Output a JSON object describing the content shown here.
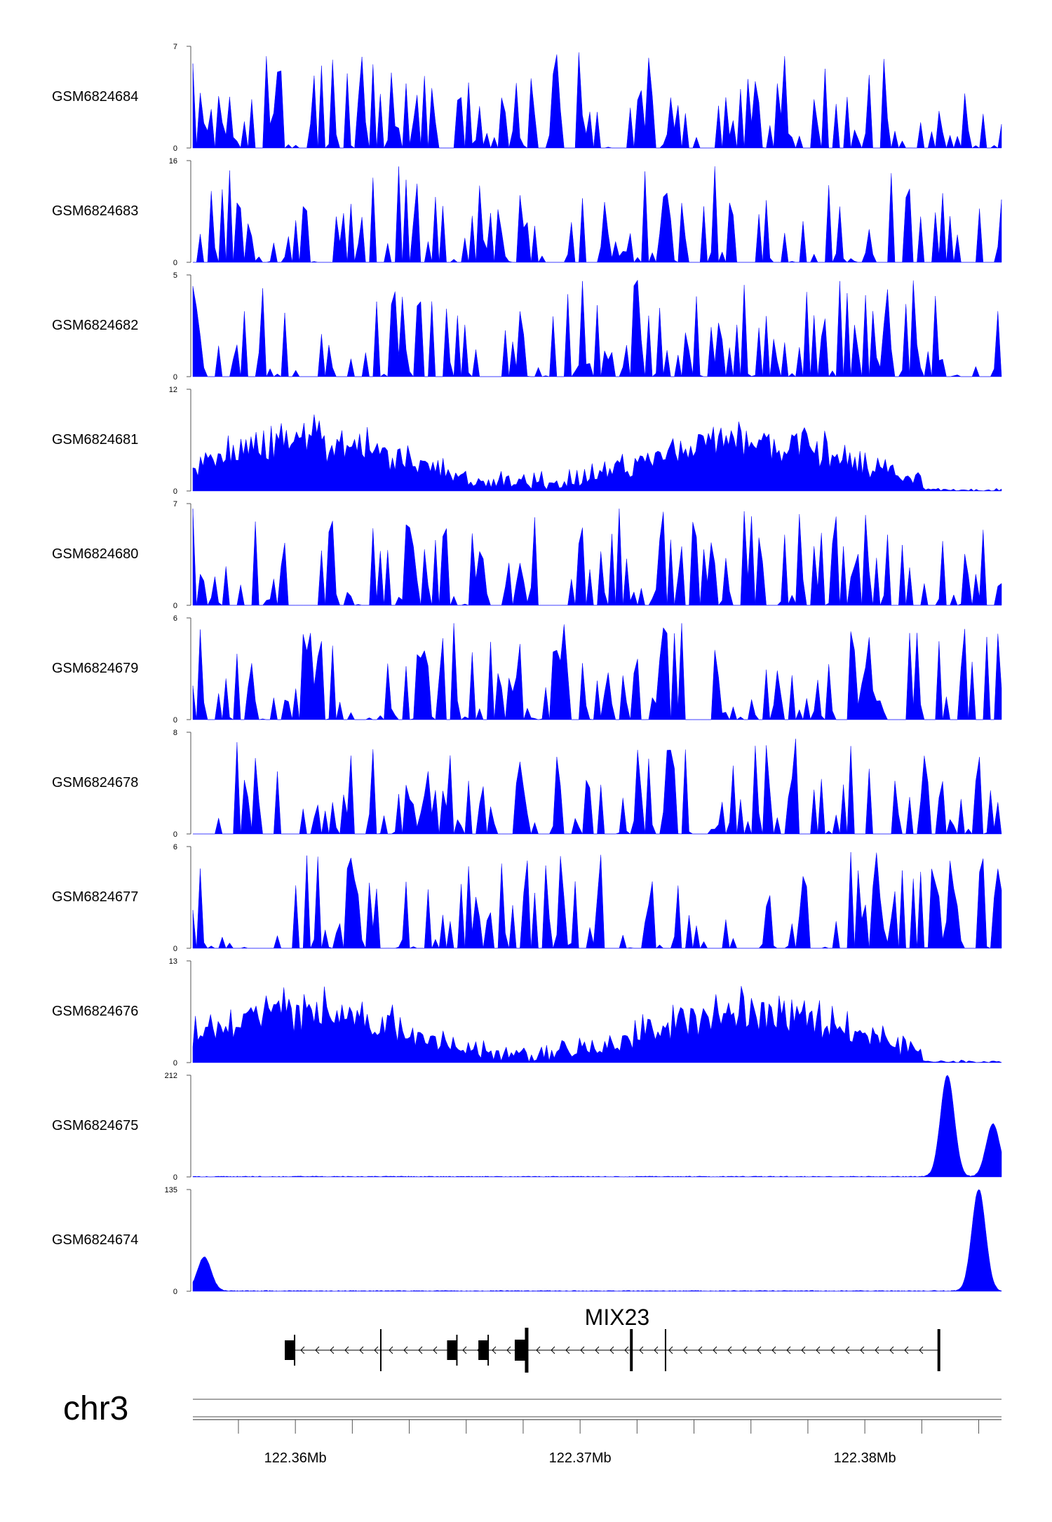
{
  "colors": {
    "track_fill": "#0000ff",
    "axis": "#555555",
    "gene": "#000000"
  },
  "chart_data": {
    "type": "area",
    "chromosome": "chr3",
    "x_range_mb": [
      122.3564,
      122.3848
    ],
    "x_ticks_mb": [
      122.358,
      122.36,
      122.362,
      122.364,
      122.366,
      122.368,
      122.37,
      122.372,
      122.374,
      122.376,
      122.378,
      122.38,
      122.382,
      122.384
    ],
    "x_tick_labels": [
      {
        "mb": 122.36,
        "label": "122.36Mb"
      },
      {
        "mb": 122.37,
        "label": "122.37Mb"
      },
      {
        "mb": 122.38,
        "label": "122.38Mb"
      }
    ],
    "tracks": [
      {
        "name": "GSM6824684",
        "ymax": 7,
        "ymin_label": "0"
      },
      {
        "name": "GSM6824683",
        "ymax": 16,
        "ymin_label": "0"
      },
      {
        "name": "GSM6824682",
        "ymax": 5,
        "ymin_label": "0"
      },
      {
        "name": "GSM6824681",
        "ymax": 12,
        "ymin_label": "0"
      },
      {
        "name": "GSM6824680",
        "ymax": 7,
        "ymin_label": "0"
      },
      {
        "name": "GSM6824679",
        "ymax": 6,
        "ymin_label": "0"
      },
      {
        "name": "GSM6824678",
        "ymax": 8,
        "ymin_label": "0"
      },
      {
        "name": "GSM6824677",
        "ymax": 6,
        "ymin_label": "0"
      },
      {
        "name": "GSM6824676",
        "ymax": 13,
        "ymin_label": "0"
      },
      {
        "name": "GSM6824675",
        "ymax": 212,
        "ymin_label": "0",
        "peaks": [
          {
            "mb": 122.3829,
            "value": 212
          },
          {
            "mb": 122.3845,
            "value": 110
          }
        ]
      },
      {
        "name": "GSM6824674",
        "ymax": 135,
        "ymin_label": "0",
        "peaks": [
          {
            "mb": 122.3568,
            "value": 45
          },
          {
            "mb": 122.384,
            "value": 135
          }
        ]
      }
    ],
    "gene": {
      "name": "MIX23",
      "strand": "-",
      "start_mb": 122.3597,
      "end_mb": 122.3826,
      "features": [
        {
          "mb": 122.3598,
          "kind": "exon"
        },
        {
          "mb": 122.363,
          "kind": "boundary"
        },
        {
          "mb": 122.3655,
          "kind": "exon"
        },
        {
          "mb": 122.3666,
          "kind": "exon"
        },
        {
          "mb": 122.368,
          "kind": "exon-large"
        },
        {
          "mb": 122.3718,
          "kind": "boundary-thick"
        },
        {
          "mb": 122.373,
          "kind": "boundary"
        },
        {
          "mb": 122.3826,
          "kind": "boundary-thick"
        }
      ]
    }
  }
}
